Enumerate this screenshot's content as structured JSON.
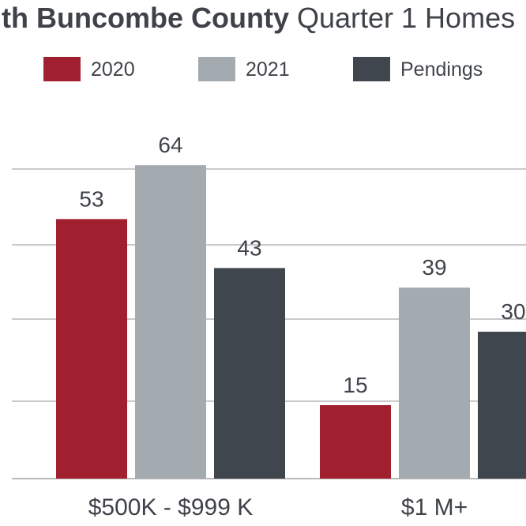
{
  "title": {
    "bold": "uth Buncombe County",
    "regular": "Quarter 1 Homes"
  },
  "colors": {
    "2020": "#a0202f",
    "2021": "#a3aab0",
    "Pendings": "#3f464e",
    "text": "#3f4349",
    "grid": "#b9b9b9"
  },
  "chart_data": {
    "type": "bar",
    "categories": [
      "$500K - $999 K",
      "$1 M+"
    ],
    "series": [
      {
        "name": "2020",
        "values": [
          53,
          15
        ]
      },
      {
        "name": "2021",
        "values": [
          64,
          39
        ]
      },
      {
        "name": "Pendings",
        "values": [
          43,
          30
        ]
      }
    ],
    "data_labels": [
      [
        "53",
        "15"
      ],
      [
        "64",
        "39"
      ],
      [
        "43",
        "30"
      ]
    ],
    "ylim": [
      0,
      80
    ],
    "grid": true,
    "legend_position": "top"
  }
}
